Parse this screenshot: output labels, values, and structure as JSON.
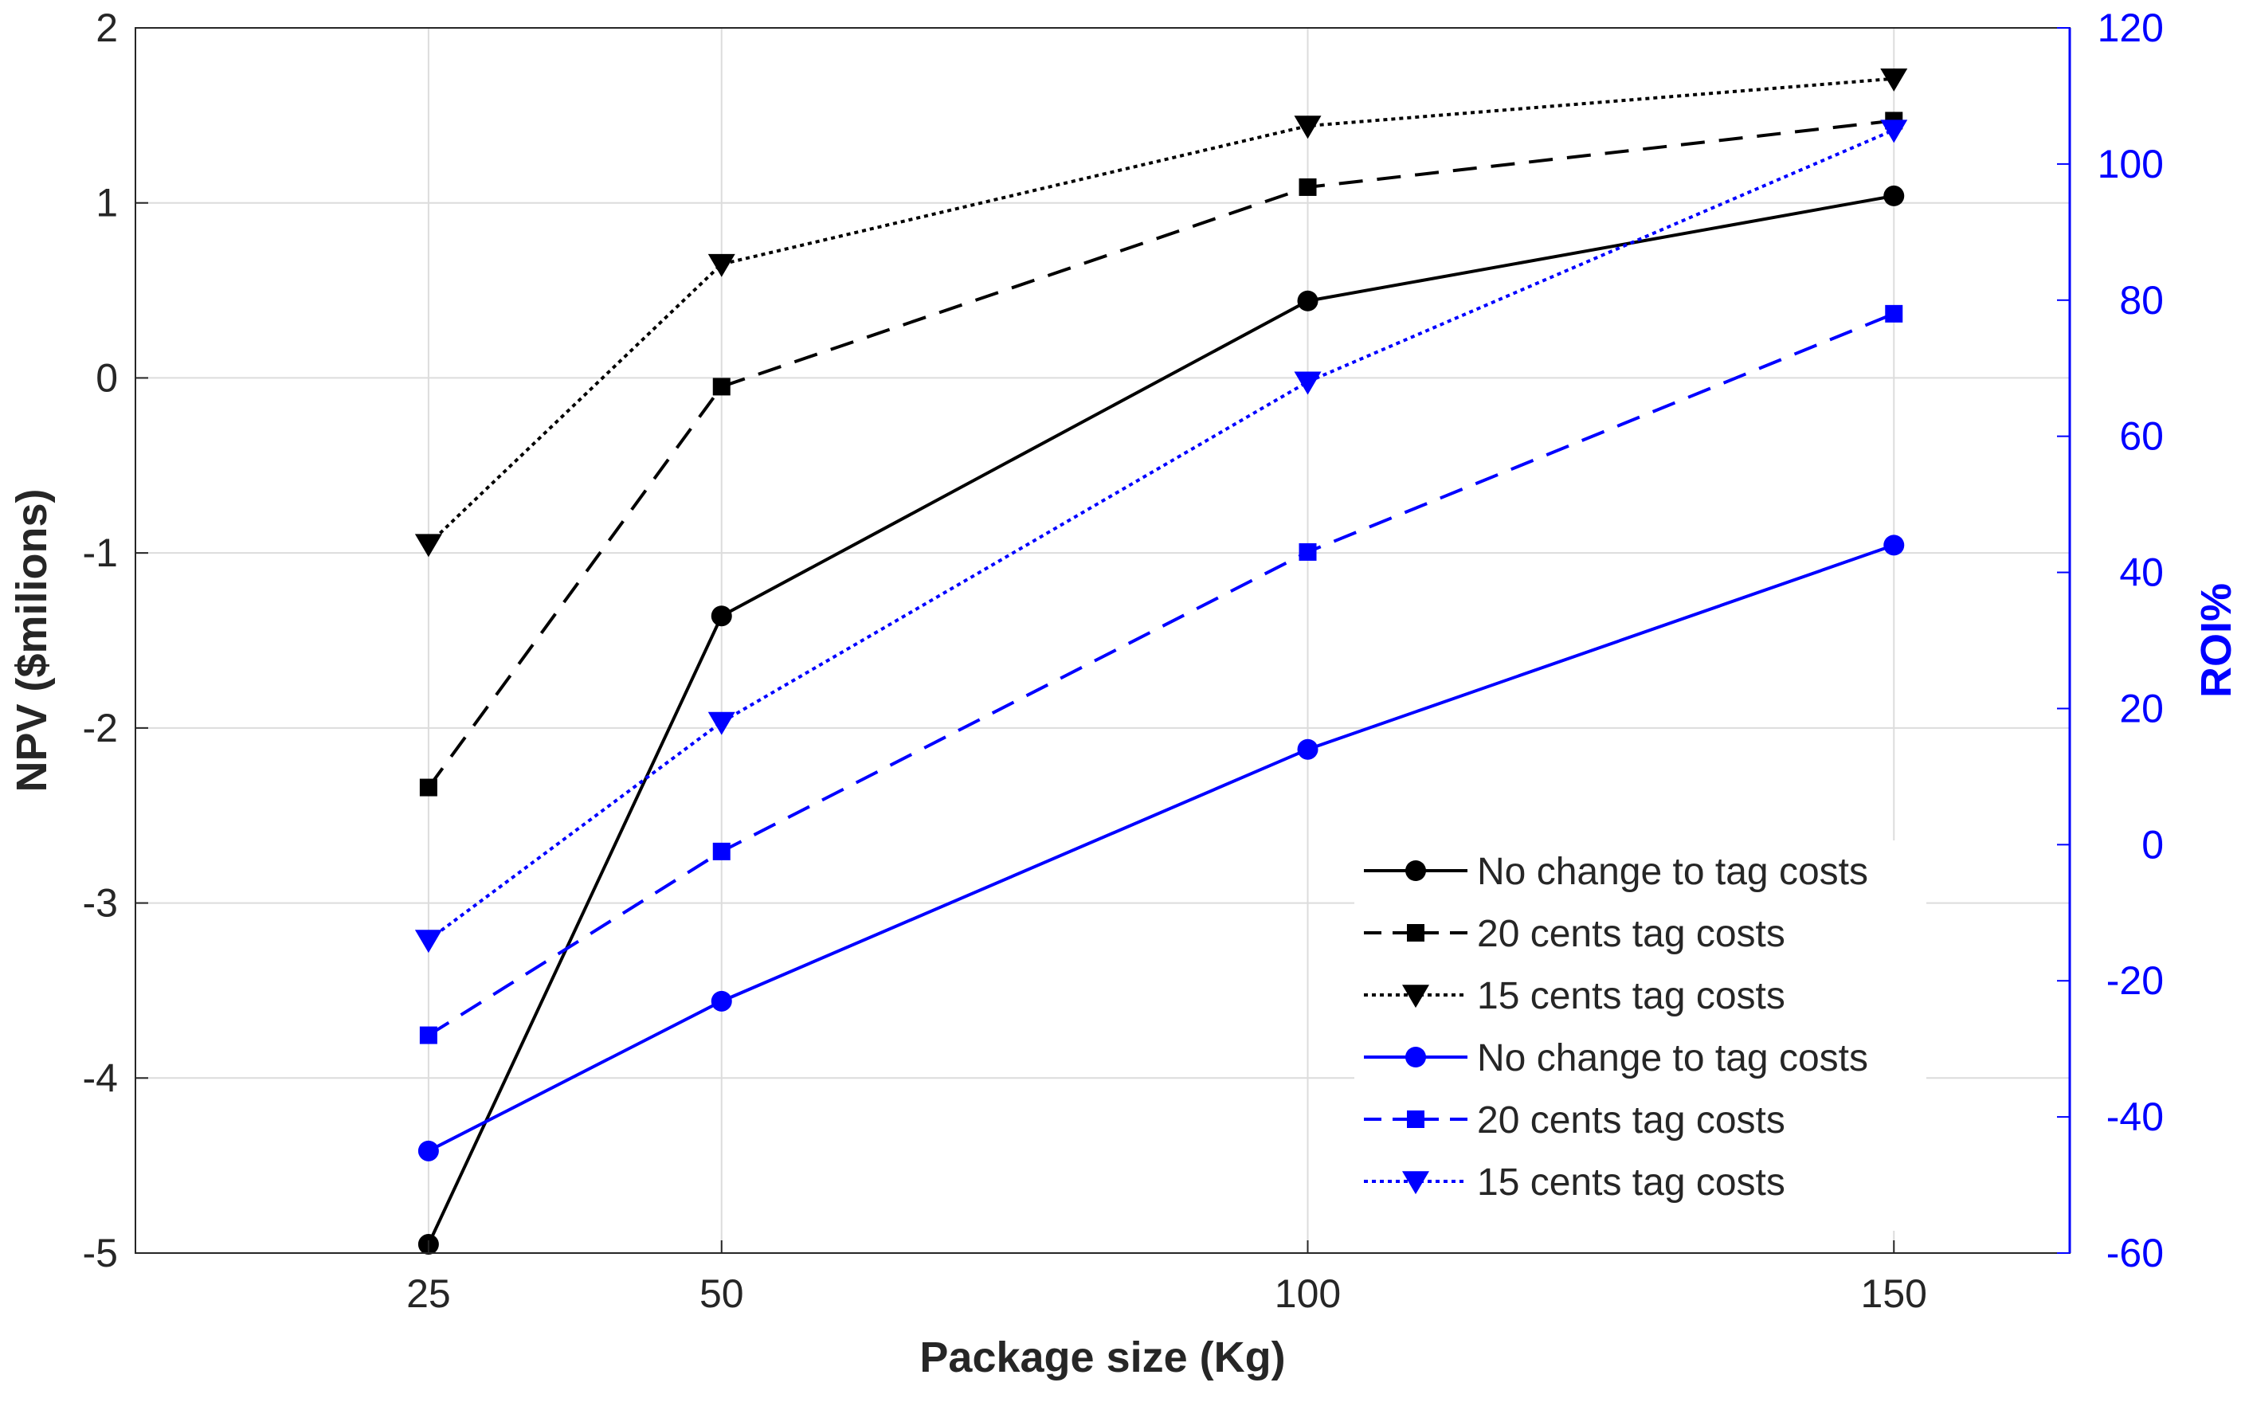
{
  "chart_data": {
    "type": "line",
    "title": "",
    "xlabel": "Package size (Kg)",
    "ylabel_left": "NPV ($milions)",
    "ylabel_right": "ROI%",
    "x": [
      25,
      50,
      100,
      150
    ],
    "x_ticks": [
      "25",
      "50",
      "100",
      "150"
    ],
    "x_range": [
      0,
      165
    ],
    "y_left_range": [
      -5,
      2
    ],
    "y_left_ticks": [
      "-5",
      "-4",
      "-3",
      "-2",
      "-1",
      "0",
      "1",
      "2"
    ],
    "y_right_range": [
      -60,
      120
    ],
    "y_right_ticks": [
      "-60",
      "-40",
      "-20",
      "0",
      "20",
      "40",
      "60",
      "80",
      "100",
      "120"
    ],
    "grid": true,
    "legend_position": "bottom-right",
    "series": [
      {
        "name": "No change to tag costs",
        "axis": "left",
        "color": "#000000",
        "style": "solid",
        "marker": "circle",
        "values": [
          -4.95,
          -1.36,
          0.44,
          1.04
        ]
      },
      {
        "name": "20 cents tag costs",
        "axis": "left",
        "color": "#000000",
        "style": "dashed",
        "marker": "square",
        "values": [
          -2.34,
          -0.05,
          1.09,
          1.47
        ]
      },
      {
        "name": "15 cents tag costs",
        "axis": "left",
        "color": "#000000",
        "style": "dotted",
        "marker": "triangle-down",
        "values": [
          -0.95,
          0.65,
          1.44,
          1.71
        ]
      },
      {
        "name": "No change to tag costs",
        "axis": "right",
        "color": "#0000ff",
        "style": "solid",
        "marker": "circle",
        "values": [
          -45,
          -23,
          14,
          44
        ]
      },
      {
        "name": "20 cents tag costs",
        "axis": "right",
        "color": "#0000ff",
        "style": "dashed",
        "marker": "square",
        "values": [
          -28,
          -1,
          43,
          78
        ]
      },
      {
        "name": "15 cents tag costs",
        "axis": "right",
        "color": "#0000ff",
        "style": "dotted",
        "marker": "triangle-down",
        "values": [
          -14,
          18,
          68,
          105
        ]
      }
    ]
  }
}
